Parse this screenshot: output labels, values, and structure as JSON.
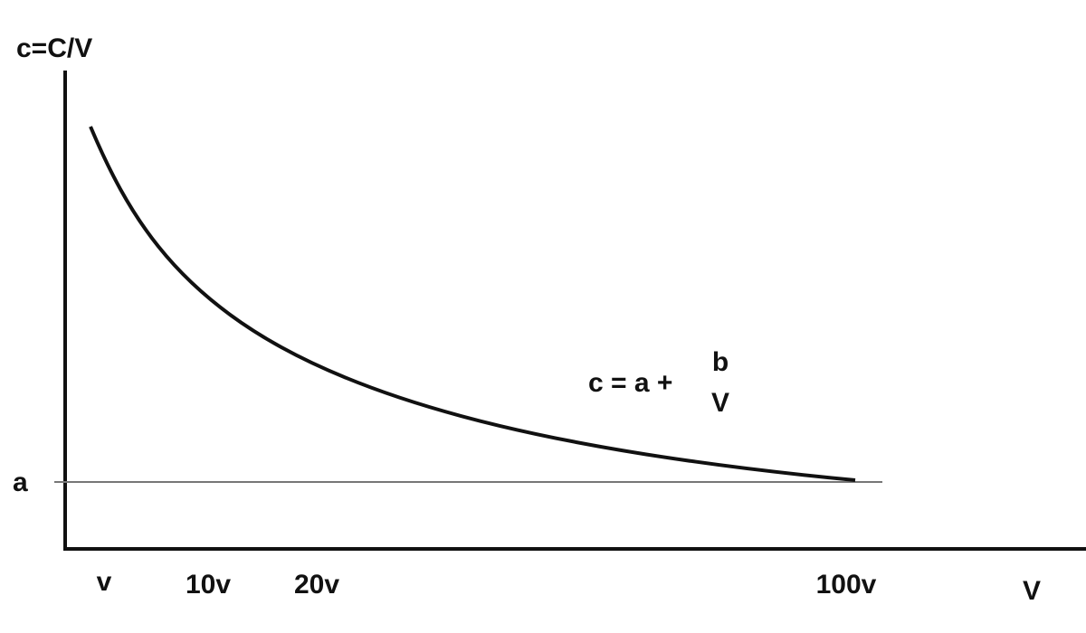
{
  "y_axis_label": "c=C/V",
  "x_axis_label": "V",
  "asymptote_label": "a",
  "x_tick_labels": [
    "v",
    "10v",
    "20v",
    "100v"
  ],
  "equation": {
    "lhs": "c = a +",
    "numerator": "b",
    "denominator": "V"
  }
}
